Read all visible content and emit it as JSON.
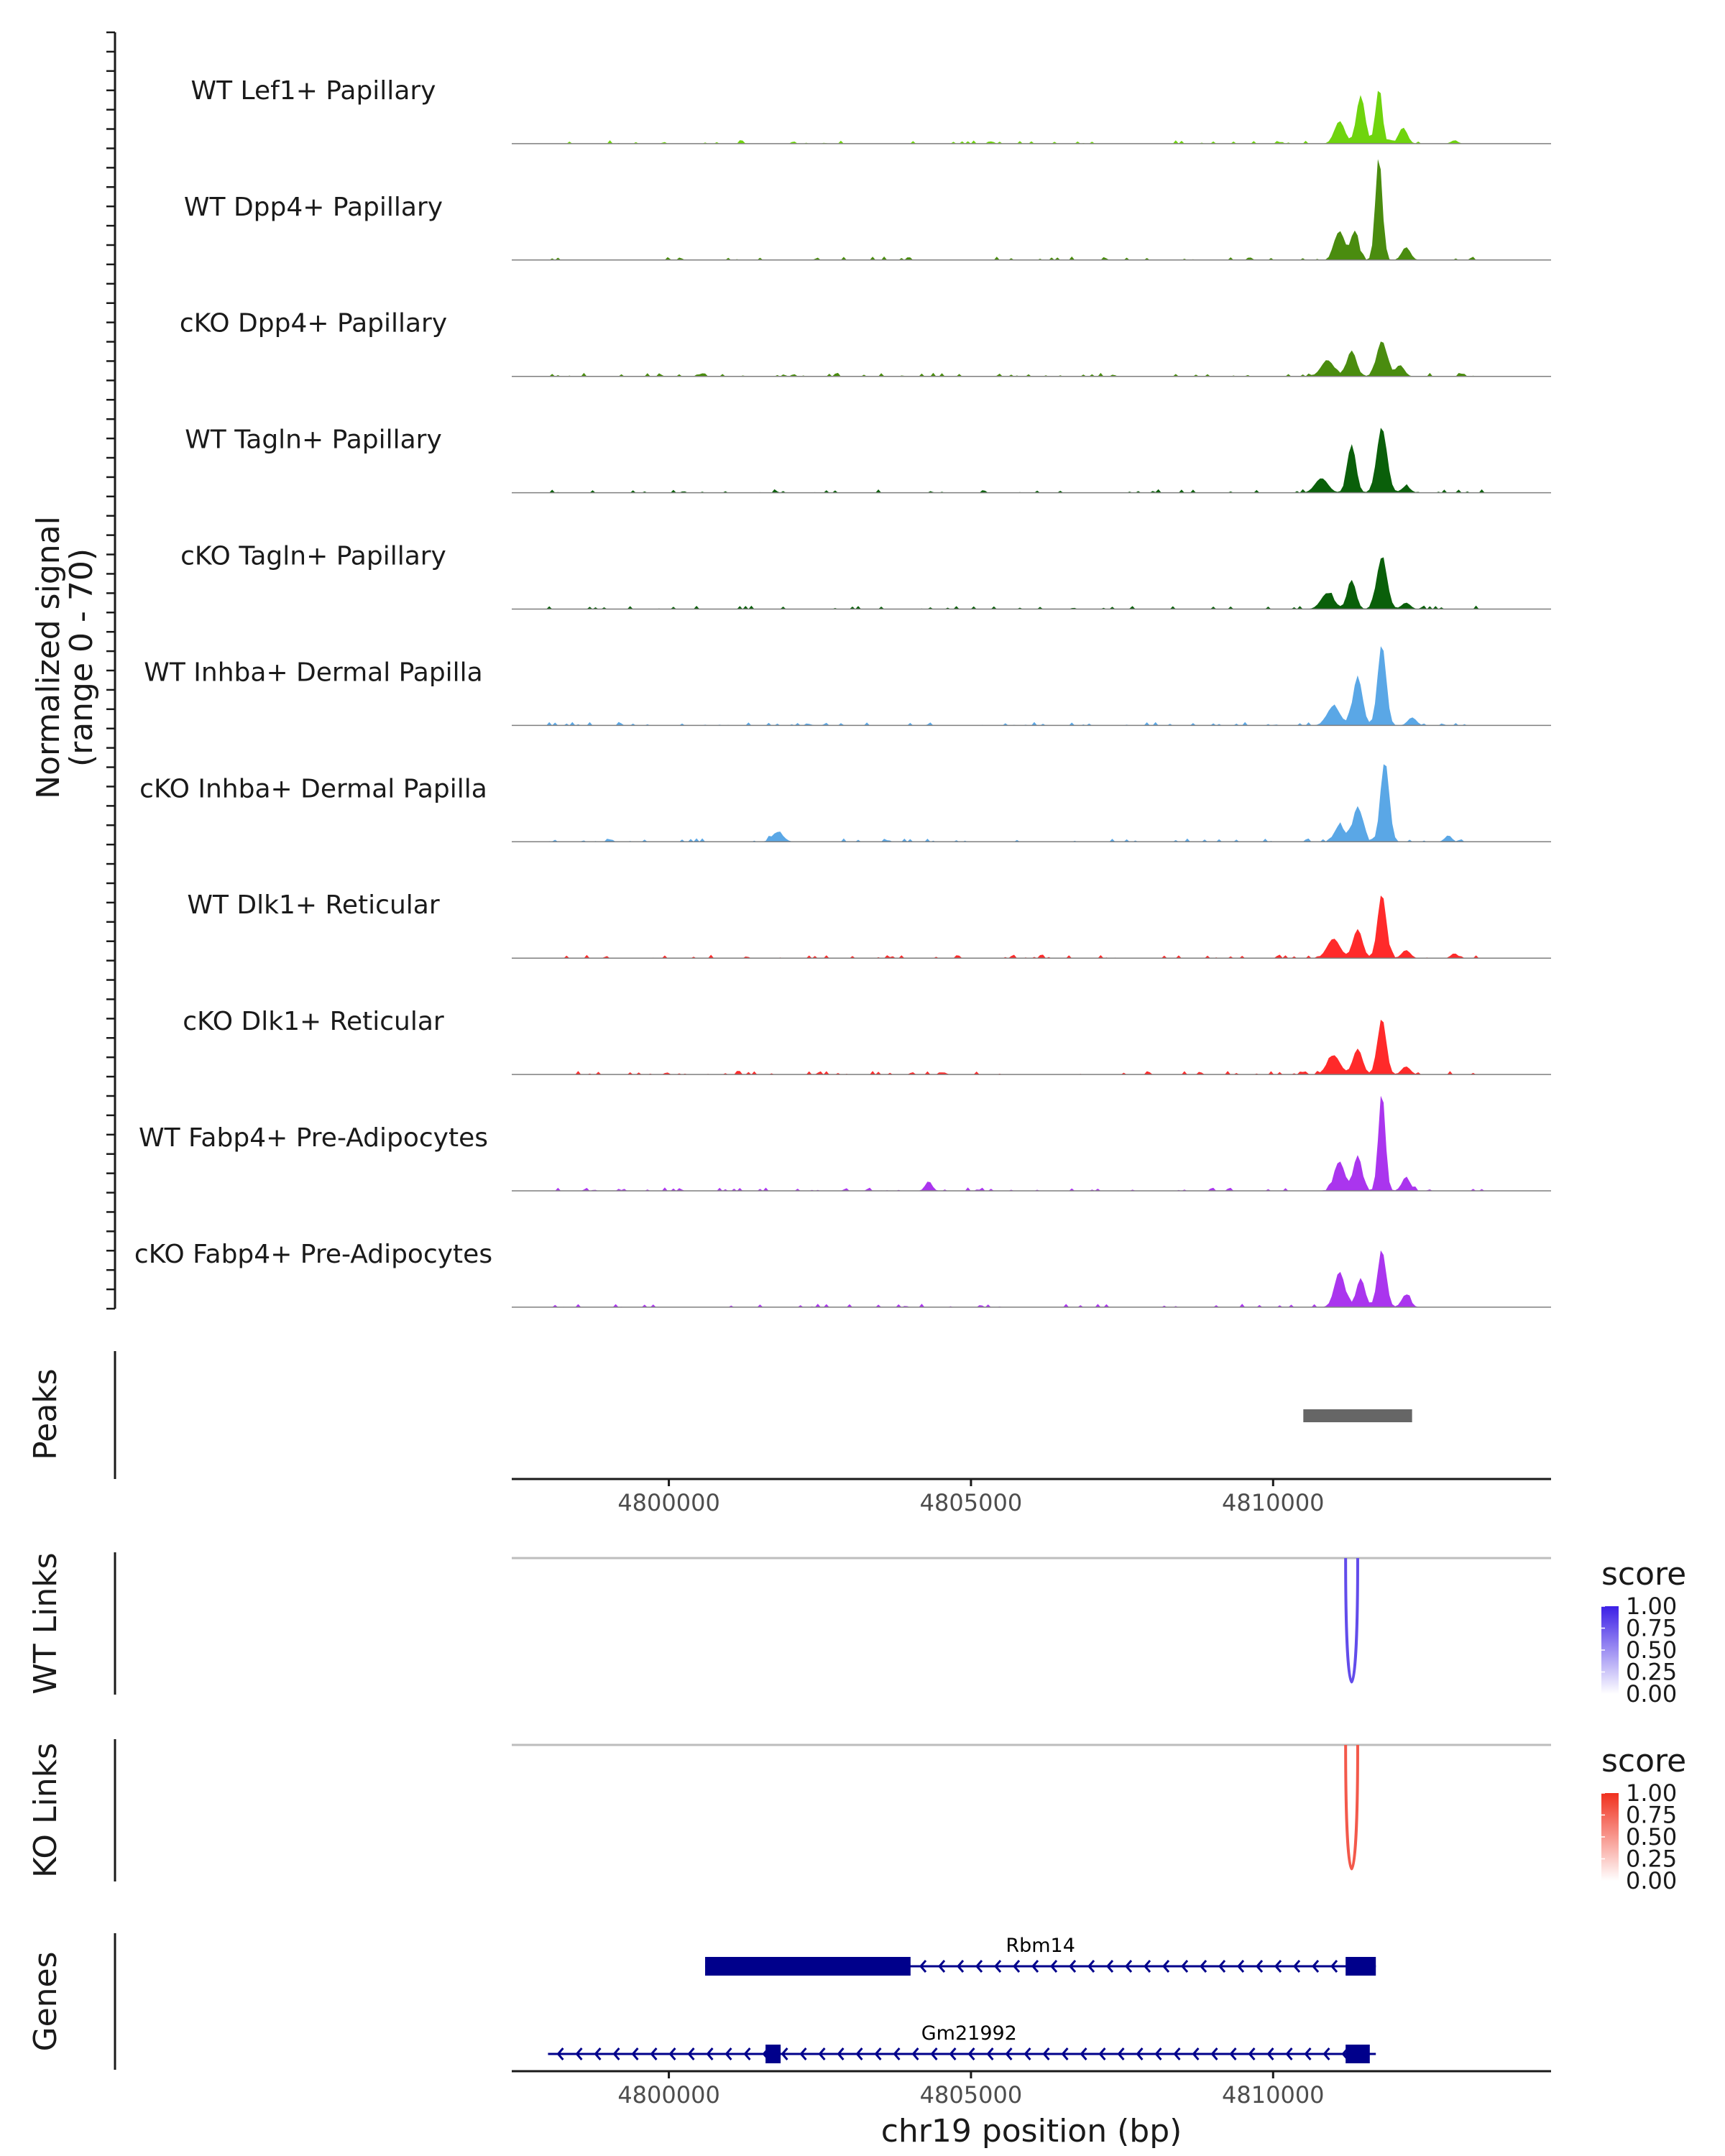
{
  "chart_data": {
    "type": "area",
    "title": "",
    "region": {
      "chrom": "chr19",
      "start": 4797400,
      "end": 4814600
    },
    "coverage": {
      "ylabel_line1": "Normalized signal",
      "ylabel_line2": "(range 0 - 70)",
      "ylim": [
        0,
        70
      ],
      "tracks": [
        {
          "name": "WT Lef1+ Papillary",
          "color": "#6FD40E",
          "peaks": [
            [
              4811100,
              14,
              120
            ],
            [
              4811450,
              30,
              100
            ],
            [
              4811750,
              34,
              80
            ],
            [
              4812150,
              10,
              100
            ],
            [
              4813000,
              2,
              80
            ]
          ]
        },
        {
          "name": "WT Dpp4+ Papillary",
          "color": "#4A8C0F",
          "peaks": [
            [
              4811100,
              18,
              120
            ],
            [
              4811350,
              18,
              90
            ],
            [
              4811750,
              65,
              80
            ],
            [
              4812200,
              8,
              100
            ]
          ]
        },
        {
          "name": "cKO Dpp4+ Papillary",
          "color": "#4A8C0F",
          "peaks": [
            [
              4810900,
              10,
              150
            ],
            [
              4811300,
              16,
              110
            ],
            [
              4811800,
              22,
              120
            ],
            [
              4812100,
              7,
              100
            ]
          ]
        },
        {
          "name": "WT Tagln+ Papillary",
          "color": "#0A5F0A",
          "peaks": [
            [
              4810800,
              9,
              150
            ],
            [
              4811300,
              30,
              100
            ],
            [
              4811800,
              40,
              120
            ],
            [
              4812200,
              4,
              100
            ]
          ]
        },
        {
          "name": "cKO Tagln+ Papillary",
          "color": "#0A5F0A",
          "peaks": [
            [
              4810900,
              10,
              150
            ],
            [
              4811300,
              18,
              100
            ],
            [
              4811800,
              32,
              120
            ],
            [
              4812200,
              4,
              100
            ]
          ]
        },
        {
          "name": "WT Inhba+ Dermal Papilla",
          "color": "#5AA7E6",
          "peaks": [
            [
              4811000,
              12,
              150
            ],
            [
              4811400,
              30,
              110
            ],
            [
              4811800,
              50,
              100
            ],
            [
              4812300,
              5,
              100
            ]
          ]
        },
        {
          "name": "cKO Inhba+ Dermal Papilla",
          "color": "#5AA7E6",
          "peaks": [
            [
              4801800,
              6,
              130
            ],
            [
              4811100,
              10,
              120
            ],
            [
              4811400,
              22,
              110
            ],
            [
              4811850,
              50,
              100
            ],
            [
              4812900,
              4,
              80
            ]
          ]
        },
        {
          "name": "WT Dlk1+ Reticular",
          "color": "#FF2A2A",
          "peaks": [
            [
              4811000,
              12,
              150
            ],
            [
              4811400,
              18,
              110
            ],
            [
              4811800,
              40,
              100
            ],
            [
              4812200,
              5,
              100
            ],
            [
              4813000,
              3,
              80
            ]
          ]
        },
        {
          "name": "cKO Dlk1+ Reticular",
          "color": "#FF2A2A",
          "peaks": [
            [
              4811000,
              12,
              150
            ],
            [
              4811400,
              16,
              110
            ],
            [
              4811800,
              35,
              100
            ],
            [
              4812200,
              5,
              100
            ]
          ]
        },
        {
          "name": "WT Fabp4+ Pre-Adipocytes",
          "color": "#AA35EE",
          "peaks": [
            [
              4804300,
              6,
              80
            ],
            [
              4811100,
              18,
              120
            ],
            [
              4811400,
              22,
              100
            ],
            [
              4811800,
              62,
              80
            ],
            [
              4812200,
              8,
              100
            ]
          ]
        },
        {
          "name": "cKO Fabp4+ Pre-Adipocytes",
          "color": "#AA35EE",
          "peaks": [
            [
              4811100,
              22,
              120
            ],
            [
              4811450,
              18,
              100
            ],
            [
              4811800,
              35,
              100
            ],
            [
              4812200,
              8,
              100
            ]
          ]
        }
      ]
    },
    "peaks_track": {
      "label": "Peaks",
      "peaks": [
        {
          "start": 4810500,
          "end": 4812300
        }
      ]
    },
    "x_axis": {
      "ticks": [
        4800000,
        4805000,
        4810000
      ],
      "tick_labels": [
        "4800000",
        "4805000",
        "4810000"
      ],
      "label": "chr19 position (bp)"
    },
    "links": [
      {
        "label": "WT Links",
        "legend_title": "score",
        "colors": [
          "#FFFFFF",
          "#3B1FE6"
        ],
        "legend_ticks": [
          "1.00",
          "0.75",
          "0.50",
          "0.25",
          "0.00"
        ],
        "link": {
          "start": 4811200,
          "end": 4811400,
          "score": 0.8
        }
      },
      {
        "label": "KO Links",
        "legend_title": "score",
        "colors": [
          "#FFFFFF",
          "#F0301E"
        ],
        "legend_ticks": [
          "1.00",
          "0.75",
          "0.50",
          "0.25",
          "0.00"
        ],
        "link": {
          "start": 4811200,
          "end": 4811400,
          "score": 0.8
        }
      }
    ],
    "genes": {
      "label": "Genes",
      "color": "#00008B",
      "items": [
        {
          "name": "Rbm14",
          "start": 4800600,
          "end": 4811700,
          "strand": "-",
          "exons": [
            [
              4800600,
              4804000
            ],
            [
              4811200,
              4811700
            ]
          ]
        },
        {
          "name": "Gm21992",
          "start": 4798000,
          "end": 4811700,
          "strand": "-",
          "exons": [
            [
              4801600,
              4801850
            ],
            [
              4811200,
              4811600
            ]
          ]
        }
      ]
    }
  }
}
